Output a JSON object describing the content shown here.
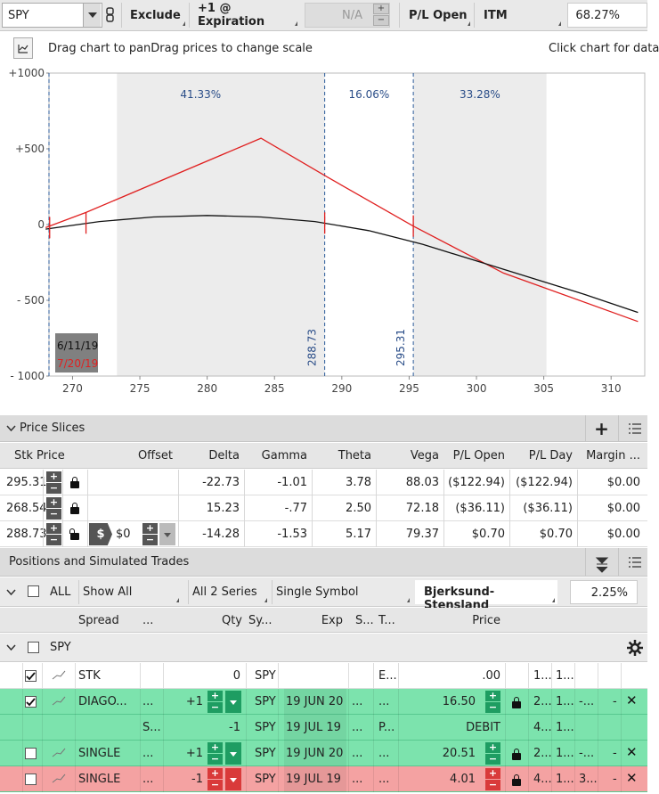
{
  "toolbar": {
    "symbol": "SPY",
    "exclude": "Exclude",
    "expiration": "+1 @ Expiration",
    "na_value": "N/A",
    "pl_open": "P/L Open",
    "itm": "ITM",
    "itm_pct": "68.27%"
  },
  "info": {
    "drag_text": "Drag chart to panDrag prices to change scale",
    "click_text": "Click chart for data"
  },
  "chart_data": {
    "type": "line",
    "xlim": [
      268,
      312
    ],
    "ylim": [
      -1000,
      1000
    ],
    "x_ticks": [
      "270",
      "275",
      "280",
      "285",
      "290",
      "295",
      "300",
      "305",
      "310"
    ],
    "y_ticks": [
      "+1000",
      "+500",
      "0",
      "- 500",
      "- 1000"
    ],
    "series": [
      {
        "color": "#e02020",
        "x": [
          268,
          271,
          284,
          289,
          295.3,
          302,
          312
        ],
        "y": [
          -20,
          80,
          570,
          310,
          -10,
          -320,
          -640
        ]
      },
      {
        "color": "#111111",
        "x": [
          268,
          272,
          276,
          280,
          284,
          288,
          292,
          296,
          300,
          304,
          308,
          312
        ],
        "y": [
          -30,
          20,
          50,
          60,
          50,
          20,
          -40,
          -130,
          -240,
          -350,
          -460,
          -580
        ]
      }
    ],
    "probabilities": [
      "41.33%",
      "16.06%",
      "33.28%"
    ],
    "price_lines": [
      "288.73",
      "295.31"
    ],
    "dates": [
      "6/11/19",
      "7/20/19"
    ]
  },
  "price_slices": {
    "title": "Price Slices",
    "columns": [
      "Stk Price",
      "Offset",
      "Delta",
      "Gamma",
      "Theta",
      "Vega",
      "P/L Open",
      "P/L Day",
      "Margin ..."
    ],
    "rows": [
      {
        "price": "295.31",
        "offset": "",
        "delta": "-22.73",
        "gamma": "-1.01",
        "theta": "3.78",
        "vega": "88.03",
        "pl_open": "($122.94)",
        "pl_day": "($122.94)",
        "margin": "$0.00"
      },
      {
        "price": "268.54",
        "offset": "",
        "delta": "15.23",
        "gamma": "-.77",
        "theta": "2.50",
        "vega": "72.18",
        "pl_open": "($36.11)",
        "pl_day": "($36.11)",
        "margin": "$0.00"
      },
      {
        "price": "288.73",
        "offset": "$0",
        "delta": "-14.28",
        "gamma": "-1.53",
        "theta": "5.17",
        "vega": "79.37",
        "pl_open": "$0.70",
        "pl_day": "$0.70",
        "margin": "$0.00"
      }
    ]
  },
  "positions": {
    "title": "Positions and Simulated Trades",
    "filter_all": "ALL",
    "show_all": "Show All",
    "series": "All 2 Series",
    "symbol_mode": "Single Symbol",
    "model": "Bjerksund-Stensland",
    "rate": "2.25%",
    "columns": {
      "spread": "Spread",
      "dots": "...",
      "qty": "Qty",
      "sym": "Sy...",
      "exp": "Exp",
      "s": "S...",
      "t": "T...",
      "price": "Price"
    },
    "group": "SPY",
    "rows": [
      {
        "spread": "STK",
        "qty": "0",
        "sym": "SPY",
        "exp": "",
        "s": "",
        "t": "E...",
        "price": ".00",
        "c1": "1...",
        "c2": "1...",
        "c3": "",
        "c4": ""
      },
      {
        "spread": "DIAGO...",
        "dots": "...",
        "qty": "+1",
        "sym": "SPY",
        "exp": "19 JUN 20",
        "s": "...",
        "t": "...",
        "price": "16.50",
        "c1": "2...",
        "c2": "1...",
        "c3": "-...",
        "c4": "-"
      },
      {
        "spread": "",
        "dots": "S...",
        "qty": "-1",
        "sym": "SPY",
        "exp": "19 JUL 19",
        "s": "...",
        "t": "P...",
        "price": "DEBIT",
        "c1": "4...",
        "c2": "1...",
        "c3": "",
        "c4": ""
      },
      {
        "spread": "SINGLE",
        "dots": "...",
        "qty": "+1",
        "sym": "SPY",
        "exp": "19 JUN 20",
        "s": "...",
        "t": "...",
        "price": "20.51",
        "c1": "2...",
        "c2": "1...",
        "c3": "-...",
        "c4": "-"
      },
      {
        "spread": "SINGLE",
        "dots": "...",
        "qty": "-1",
        "sym": "SPY",
        "exp": "19 JUL 19",
        "s": "...",
        "t": "...",
        "price": "4.01",
        "c1": "4...",
        "c2": "1...",
        "c3": "3...",
        "c4": "-"
      }
    ]
  }
}
